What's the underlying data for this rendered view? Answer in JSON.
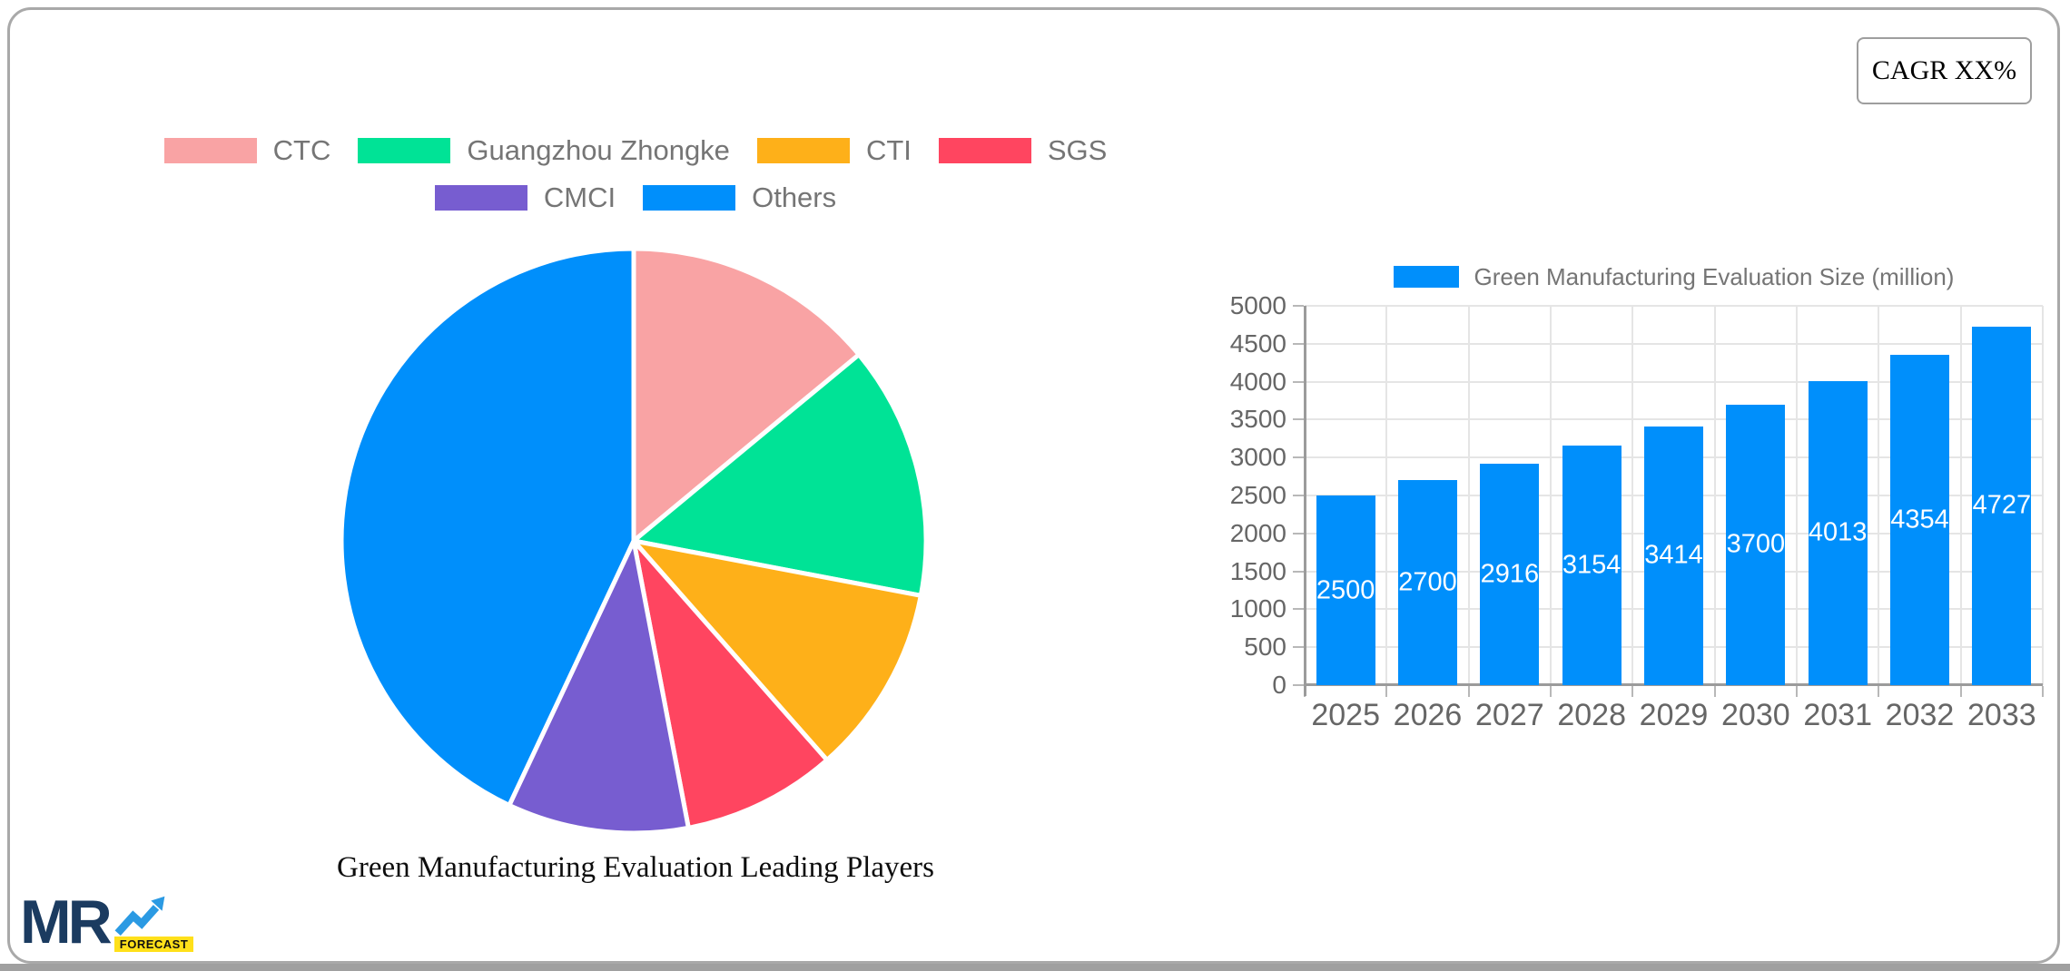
{
  "cagr": {
    "label": "CAGR XX%"
  },
  "logo": {
    "name": "MR",
    "badge": "FORECAST"
  },
  "colors": {
    "accent_blue": "#008FFB",
    "card_border": "#a9a9a9",
    "axis_text": "#666666",
    "legend_text": "#757575"
  },
  "chart_data": [
    {
      "type": "pie",
      "title": "Green Manufacturing Evaluation Leading Players",
      "labels": [
        "CTC",
        "Guangzhou Zhongke",
        "CTI",
        "SGS",
        "CMCI",
        "Others"
      ],
      "values": [
        14,
        14,
        10.5,
        8.5,
        10,
        43
      ],
      "unit": "percent-share",
      "colors": [
        "#F9A3A4",
        "#00E396",
        "#FEB019",
        "#FF4560",
        "#775DD0",
        "#008FFB"
      ],
      "start_angle_deg": 0,
      "direction": "clockwise",
      "legend_position": "top",
      "legend_rows": [
        4,
        2
      ]
    },
    {
      "type": "bar",
      "legend": "Green Manufacturing Evaluation Size (million)",
      "categories": [
        "2025",
        "2026",
        "2027",
        "2028",
        "2029",
        "2030",
        "2031",
        "2032",
        "2033"
      ],
      "values": [
        2500,
        2700,
        2916,
        3154,
        3414,
        3700,
        4013,
        4354,
        4727
      ],
      "bar_color": "#008FFB",
      "value_label_color": "#ffffff",
      "ylim": [
        0,
        5000
      ],
      "yticks": [
        0,
        500,
        1000,
        1500,
        2000,
        2500,
        3000,
        3500,
        4000,
        4500,
        5000
      ],
      "grid": true,
      "legend_position": "top"
    }
  ]
}
